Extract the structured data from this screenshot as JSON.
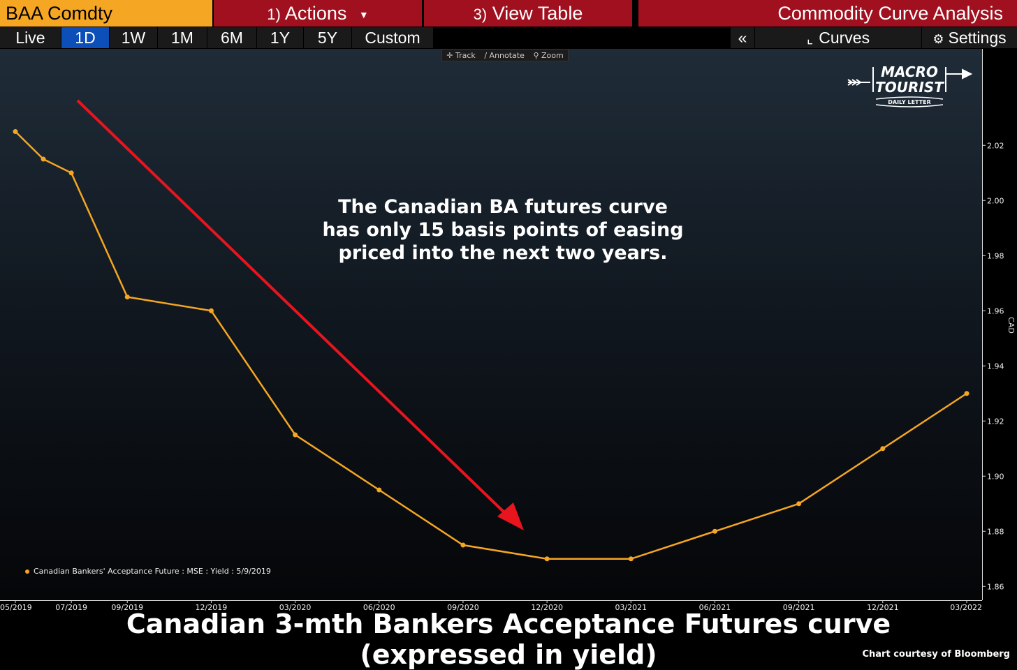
{
  "topbar": {
    "ticker": "BAA Comdty",
    "actions_num": "1)",
    "actions_label": "Actions",
    "viewtable_num": "3)",
    "viewtable_label": "View Table",
    "analysis_label": "Commodity Curve Analysis"
  },
  "periods": [
    {
      "label": "Live",
      "active": false
    },
    {
      "label": "1D",
      "active": true
    },
    {
      "label": "1W",
      "active": false
    },
    {
      "label": "1M",
      "active": false
    },
    {
      "label": "6M",
      "active": false
    },
    {
      "label": "1Y",
      "active": false
    },
    {
      "label": "5Y",
      "active": false
    },
    {
      "label": "Custom",
      "active": false
    }
  ],
  "right_tools": {
    "collapse": "«",
    "curves": "Curves",
    "settings": "Settings"
  },
  "chart_toolbar": {
    "track": "Track",
    "annotate": "Annotate",
    "zoom": "Zoom"
  },
  "logo": {
    "line1": "MACRO",
    "line2": "TOURIST",
    "line3": "DAILY LETTER"
  },
  "annotation_text": [
    "The Canadian BA futures curve",
    "has only 15 basis points of easing",
    "priced into the next two years."
  ],
  "caption": {
    "line1": "Canadian 3-mth Bankers Acceptance Futures curve",
    "line2": "(expressed in yield)",
    "courtesy": "Chart courtesy of Bloomberg"
  },
  "colors": {
    "series": "#f5a623",
    "arrow": "#e8141e",
    "accent_bar": "#a0101f",
    "active_button": "#0d4fb8"
  },
  "chart_data": {
    "type": "line",
    "x": [
      "05/2019",
      "06/2019",
      "07/2019",
      "09/2019",
      "12/2019",
      "03/2020",
      "06/2020",
      "09/2020",
      "12/2020",
      "03/2021",
      "06/2021",
      "09/2021",
      "12/2021",
      "03/2022"
    ],
    "series": [
      {
        "name": "Canadian Bankers' Acceptance Future : MSE : Yield : 5/9/2019",
        "values": [
          2.025,
          2.015,
          2.01,
          1.965,
          1.96,
          1.915,
          1.895,
          1.875,
          1.87,
          1.87,
          1.88,
          1.89,
          1.91,
          1.93
        ]
      }
    ],
    "x_tick_labels": [
      "05/2019",
      "07/2019",
      "09/2019",
      "12/2019",
      "03/2020",
      "06/2020",
      "09/2020",
      "12/2020",
      "03/2021",
      "06/2021",
      "09/2021",
      "12/2021",
      "03/2022"
    ],
    "y_ticks": [
      "1.86",
      "1.88",
      "1.90",
      "1.92",
      "1.94",
      "1.96",
      "1.98",
      "2.00",
      "2.02"
    ],
    "ylabel": "CAD",
    "ylim": [
      1.855,
      2.055
    ],
    "legend_position": "bottom-left",
    "grid": false
  }
}
